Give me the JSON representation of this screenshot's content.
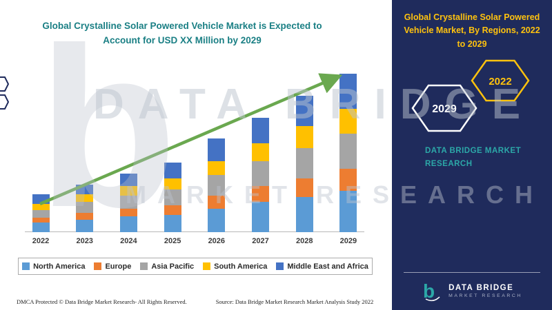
{
  "colors": {
    "title_teal": "#1A7F84",
    "panel_navy": "#1F2B5C",
    "gold": "#FFC20E",
    "brand_teal": "#2CA8A8",
    "arrow_green": "#6AA84F",
    "axis_gray": "#B7B7B7"
  },
  "left": {
    "title": "Global Crystalline Solar Powered Vehicle Market is Expected to Account for USD XX Million by 2029"
  },
  "right": {
    "title": "Global Crystalline Solar Powered Vehicle Market, By Regions, 2022 to 2029",
    "hexagon_back_label": "2029",
    "hexagon_front_label": "2022",
    "brand_text": "DATA BRIDGE MARKET RESEARCH",
    "logo_letter": "b",
    "logo_title": "DATA BRIDGE",
    "logo_subtitle": "MARKET RESEARCH"
  },
  "watermark": {
    "logo_letter": "b",
    "line1": "DATA BRIDGE",
    "line2": "MARKET RESEARCH"
  },
  "footer": {
    "dmca": "DMCA Protected © Data Bridge Market Research- All Rights Reserved.",
    "source": "Source: Data Bridge Market Research Market Analysis Study 2022"
  },
  "chart_data": {
    "type": "bar",
    "stacked": true,
    "title": "Global Crystalline Solar Powered Vehicle Market is Expected to Account for USD XX Million by 2029",
    "categories": [
      "2022",
      "2023",
      "2024",
      "2025",
      "2026",
      "2027",
      "2028",
      "2029"
    ],
    "series": [
      {
        "name": "North America",
        "color": "#5B9BD5",
        "values": [
          6,
          8,
          10,
          11,
          15,
          19,
          22,
          26
        ]
      },
      {
        "name": "Europe",
        "color": "#ED7D31",
        "values": [
          3,
          4,
          5,
          6,
          8,
          10,
          12,
          14
        ]
      },
      {
        "name": "Asia Pacific",
        "color": "#A5A5A5",
        "values": [
          5,
          7,
          8,
          10,
          13,
          16,
          19,
          22
        ]
      },
      {
        "name": "South America",
        "color": "#FFC000",
        "values": [
          4,
          5,
          6,
          7,
          9,
          11,
          14,
          16
        ]
      },
      {
        "name": "Middle East and Africa",
        "color": "#4472C4",
        "values": [
          6,
          6,
          8,
          10,
          14,
          16,
          19,
          22
        ]
      }
    ],
    "xlabel": "",
    "ylabel": "",
    "ylim": [
      0,
      110
    ],
    "grid": false,
    "legend_position": "bottom",
    "trend_arrow": true
  }
}
